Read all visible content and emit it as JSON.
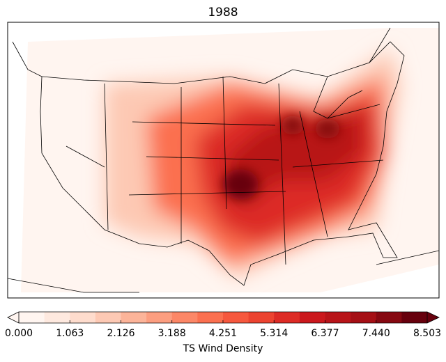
{
  "title": "1988",
  "colorbar": {
    "label": "TS Wind Density",
    "range": [
      0,
      8.503
    ],
    "ticks": [
      {
        "value": 0,
        "label": "0.000"
      },
      1.063,
      2.126,
      3.188,
      4.251,
      5.314,
      6.377,
      {
        "value": 7.44,
        "label": "7.440"
      },
      8.503
    ],
    "colors": [
      "#fff5f0",
      "#fee9df",
      "#fedccd",
      "#fdc9b4",
      "#fcb499",
      "#fc9e80",
      "#fc8767",
      "#fb7050",
      "#f6583e",
      "#ec4330",
      "#dd2b25",
      "#cb181d",
      "#b81419",
      "#a50f15",
      "#860811",
      "#67000d"
    ]
  }
}
